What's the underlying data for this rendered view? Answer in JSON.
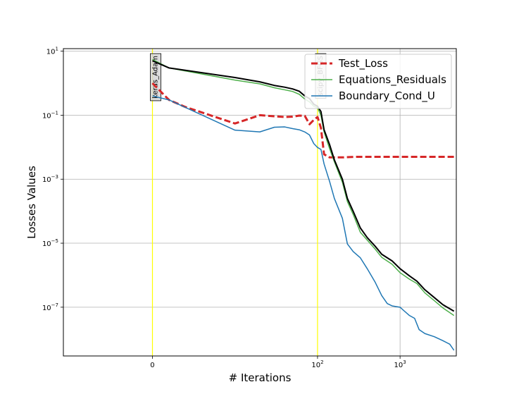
{
  "chart_data": {
    "type": "line",
    "title": "",
    "xlabel": "# Iterations",
    "ylabel": "Losses Values",
    "xscale": "symlog",
    "yscale": "log",
    "xlim": [
      -12,
      4800
    ],
    "ylim": [
      3e-09,
      12
    ],
    "grid": true,
    "legend_position": "top-right",
    "x_ticks": [
      {
        "value": 0,
        "label": "0"
      },
      {
        "value": 100,
        "label": "10",
        "sup": "2"
      },
      {
        "value": 1000,
        "label": "10",
        "sup": "3"
      }
    ],
    "y_ticks": [
      {
        "value": 10,
        "label": "10",
        "sup": "1"
      },
      {
        "value": 0.1,
        "label": "10",
        "sup": "−1"
      },
      {
        "value": 0.001,
        "label": "10",
        "sup": "−3"
      },
      {
        "value": 1e-05,
        "label": "10",
        "sup": "−5"
      },
      {
        "value": 1e-07,
        "label": "10",
        "sup": "−7"
      }
    ],
    "vlines": [
      {
        "x": 0,
        "label": "keras_Adam",
        "color": "#ffff00"
      },
      {
        "x": 100,
        "label": "scipy_BFGS",
        "color": "#ffff00"
      }
    ],
    "series": [
      {
        "name": "Test_Loss",
        "color": "#d62728",
        "style": "dashed",
        "width": 3,
        "in_legend": true,
        "points": [
          [
            0,
            1.0
          ],
          [
            2,
            0.3
          ],
          [
            4,
            0.18
          ],
          [
            10,
            0.055
          ],
          [
            20,
            0.1
          ],
          [
            30,
            0.092
          ],
          [
            40,
            0.088
          ],
          [
            50,
            0.09
          ],
          [
            60,
            0.097
          ],
          [
            70,
            0.096
          ],
          [
            80,
            0.052
          ],
          [
            90,
            0.071
          ],
          [
            100,
            0.088
          ],
          [
            110,
            0.04
          ],
          [
            120,
            0.006
          ],
          [
            140,
            0.0048
          ],
          [
            200,
            0.0048
          ],
          [
            300,
            0.005
          ],
          [
            500,
            0.005
          ],
          [
            1000,
            0.005
          ],
          [
            2000,
            0.005
          ],
          [
            4500,
            0.005
          ]
        ]
      },
      {
        "name": "Equations_Residuals",
        "color": "#4daf4a",
        "style": "solid",
        "width": 1.5,
        "in_legend": true,
        "points": [
          [
            0,
            5.5
          ],
          [
            2,
            3.0
          ],
          [
            10,
            1.25
          ],
          [
            20,
            0.95
          ],
          [
            30,
            0.72
          ],
          [
            40,
            0.62
          ],
          [
            50,
            0.55
          ],
          [
            60,
            0.45
          ],
          [
            70,
            0.32
          ],
          [
            80,
            0.26
          ],
          [
            90,
            0.19
          ],
          [
            100,
            0.17
          ],
          [
            110,
            0.1
          ],
          [
            120,
            0.03
          ],
          [
            140,
            0.009
          ],
          [
            160,
            0.0035
          ],
          [
            200,
            0.0008
          ],
          [
            230,
            0.0002
          ],
          [
            270,
            8e-05
          ],
          [
            330,
            2.2e-05
          ],
          [
            400,
            1.25e-05
          ],
          [
            500,
            6.5e-06
          ],
          [
            600,
            3.6e-06
          ],
          [
            800,
            2.2e-06
          ],
          [
            1000,
            1.2e-06
          ],
          [
            1300,
            7.5e-07
          ],
          [
            1600,
            5.5e-07
          ],
          [
            2000,
            2.8e-07
          ],
          [
            2600,
            1.6e-07
          ],
          [
            3300,
            9.5e-08
          ],
          [
            4500,
            5.5e-08
          ]
        ]
      },
      {
        "name": "Boundary_Cond_U",
        "color": "#1f77b4",
        "style": "solid",
        "width": 1.5,
        "in_legend": true,
        "points": [
          [
            0,
            0.4
          ],
          [
            2,
            0.3
          ],
          [
            10,
            0.034
          ],
          [
            20,
            0.03
          ],
          [
            30,
            0.042
          ],
          [
            40,
            0.043
          ],
          [
            50,
            0.038
          ],
          [
            60,
            0.035
          ],
          [
            70,
            0.03
          ],
          [
            80,
            0.024
          ],
          [
            90,
            0.013
          ],
          [
            100,
            0.0098
          ],
          [
            110,
            0.0085
          ],
          [
            120,
            0.003
          ],
          [
            140,
            0.00085
          ],
          [
            160,
            0.00025
          ],
          [
            200,
            6e-05
          ],
          [
            230,
            9.5e-06
          ],
          [
            270,
            5.5e-06
          ],
          [
            330,
            3.5e-06
          ],
          [
            400,
            1.6e-06
          ],
          [
            500,
            6e-07
          ],
          [
            600,
            2.3e-07
          ],
          [
            700,
            1.3e-07
          ],
          [
            800,
            1.1e-07
          ],
          [
            1000,
            1e-07
          ],
          [
            1100,
            8e-08
          ],
          [
            1300,
            5.5e-08
          ],
          [
            1500,
            4.5e-08
          ],
          [
            1700,
            2e-08
          ],
          [
            2000,
            1.5e-08
          ],
          [
            2600,
            1.2e-08
          ],
          [
            3300,
            9e-09
          ],
          [
            4000,
            7e-09
          ],
          [
            4500,
            4.5e-09
          ]
        ]
      },
      {
        "name": "",
        "color": "#000000",
        "style": "solid",
        "width": 2,
        "in_legend": false,
        "points": [
          [
            0,
            5.0
          ],
          [
            2,
            3.0
          ],
          [
            10,
            1.5
          ],
          [
            20,
            1.1
          ],
          [
            30,
            0.85
          ],
          [
            40,
            0.75
          ],
          [
            50,
            0.66
          ],
          [
            60,
            0.56
          ],
          [
            70,
            0.4
          ],
          [
            80,
            0.33
          ],
          [
            90,
            0.22
          ],
          [
            100,
            0.19
          ],
          [
            110,
            0.13
          ],
          [
            120,
            0.035
          ],
          [
            140,
            0.012
          ],
          [
            160,
            0.004
          ],
          [
            200,
            0.001
          ],
          [
            230,
            0.00025
          ],
          [
            270,
            0.0001
          ],
          [
            330,
            3e-05
          ],
          [
            400,
            1.5e-05
          ],
          [
            500,
            8e-06
          ],
          [
            600,
            4.5e-06
          ],
          [
            800,
            2.8e-06
          ],
          [
            1000,
            1.6e-06
          ],
          [
            1300,
            9.5e-07
          ],
          [
            1600,
            6.5e-07
          ],
          [
            2000,
            3.5e-07
          ],
          [
            2600,
            2e-07
          ],
          [
            3300,
            1.2e-07
          ],
          [
            4500,
            7.5e-08
          ]
        ]
      }
    ]
  }
}
